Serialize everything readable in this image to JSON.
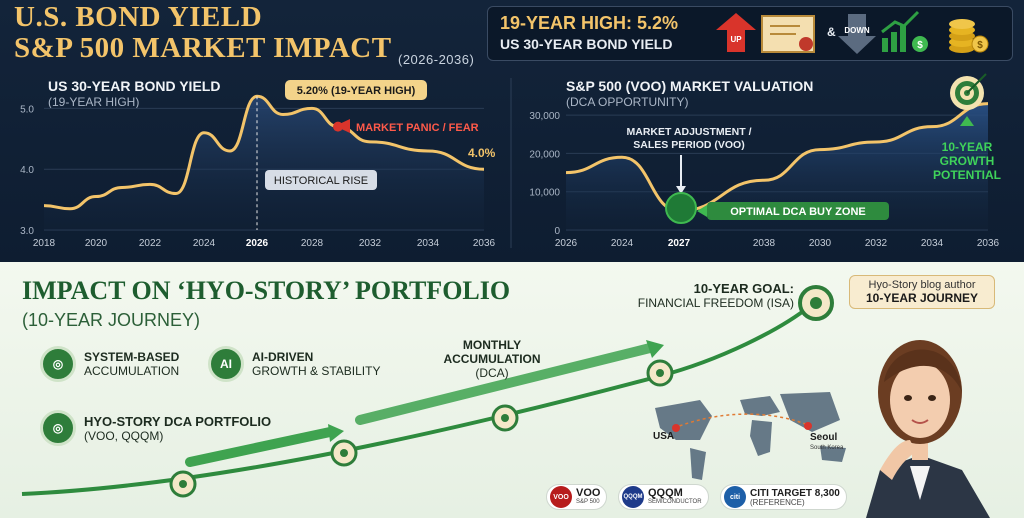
{
  "header": {
    "title_line1": "U.S. BOND YIELD",
    "title_line2": "S&P 500 MARKET IMPACT",
    "title_years": "(2026-2036)",
    "highlight_title": "19-YEAR HIGH: 5.2%",
    "highlight_sub": "US 30-YEAR BOND YIELD",
    "up_label": "UP",
    "down_label": "DOWN",
    "amp": "&"
  },
  "bond_panel": {
    "title": "US 30-YEAR BOND YIELD",
    "subtitle": "(19-YEAR HIGH)",
    "peak_label": "5.20% (19-YEAR HIGH)",
    "panic_label": "MARKET PANIC / FEAR",
    "rise_label": "HISTORICAL RISE",
    "end_label": "4.0%",
    "y_ticks": [
      "5.0",
      "4.0",
      "3.0"
    ],
    "x_ticks": [
      "2018",
      "2020",
      "2022",
      "2024",
      "2026",
      "2028",
      "2032",
      "2034",
      "2036"
    ]
  },
  "sp_panel": {
    "title": "S&P 500 (VOO) MARKET VALUATION",
    "subtitle": "(DCA OPPORTUNITY)",
    "adjust_label": "MARKET ADJUSTMENT / SALES PERIOD (VOO)",
    "zone_label": "OPTIMAL DCA BUY ZONE",
    "growth_label": "10-YEAR GROWTH POTENTIAL",
    "y_ticks": [
      "30,000",
      "20,000",
      "10,000",
      "0"
    ],
    "x_ticks": [
      "2026",
      "2024",
      "2027",
      "2038",
      "2030",
      "2032",
      "2034",
      "2036"
    ]
  },
  "chart_data": [
    {
      "type": "line",
      "title": "US 30-YEAR BOND YIELD",
      "subtitle": "(19-YEAR HIGH)",
      "x": [
        2018,
        2019,
        2020,
        2021,
        2022,
        2023,
        2024,
        2025,
        2026,
        2027,
        2028,
        2029,
        2032,
        2034,
        2036
      ],
      "values": [
        3.4,
        3.35,
        3.55,
        3.7,
        3.75,
        3.6,
        4.6,
        4.3,
        5.2,
        4.9,
        5.0,
        4.7,
        4.45,
        4.3,
        4.0
      ],
      "ylim": [
        3.0,
        5.5
      ],
      "annotations": [
        "5.20% (19-YEAR HIGH)",
        "MARKET PANIC / FEAR",
        "HISTORICAL RISE",
        "4.0%"
      ]
    },
    {
      "type": "area",
      "title": "S&P 500 (VOO) MARKET VALUATION",
      "subtitle": "(DCA OPPORTUNITY)",
      "x": [
        "2026",
        "2024",
        "2027",
        "2038",
        "2030",
        "2032",
        "2034",
        "2036"
      ],
      "values": [
        15000,
        19000,
        5000,
        13000,
        21000,
        23000,
        27000,
        33000
      ],
      "ylim": [
        0,
        35000
      ],
      "annotations": [
        "MARKET ADJUSTMENT / SALES PERIOD (VOO)",
        "OPTIMAL DCA BUY ZONE",
        "10-YEAR GROWTH POTENTIAL"
      ]
    }
  ],
  "portfolio": {
    "title": "IMPACT ON ‘HYO-STORY’ PORTFOLIO",
    "subtitle": "(10-YEAR JOURNEY)",
    "feature1_line1": "SYSTEM-BASED",
    "feature1_line2": "ACCUMULATION",
    "feature2_line1": "AI-DRIVEN",
    "feature2_line2": "GROWTH & STABILITY",
    "ai_icon": "AI",
    "dca_title": "HYO-STORY DCA PORTFOLIO",
    "dca_sub": "(VOO, QQQM)",
    "monthly_line1": "MONTHLY",
    "monthly_line2": "ACCUMULATION",
    "monthly_line3": "(DCA)",
    "goal_line1": "10-YEAR GOAL:",
    "goal_line2": "FINANCIAL FREEDOM (ISA)",
    "usa_label": "USA",
    "seoul_label": "Seoul",
    "seoul_sub": "South Korea",
    "badge_line1": "Hyo-Story blog author",
    "badge_line2": "10-YEAR JOURNEY"
  },
  "tickers": [
    {
      "logo": "VOO",
      "name": "VOO",
      "sub": "S&P 500",
      "color": "#b71c1c"
    },
    {
      "logo": "QQQM",
      "name": "QQQM",
      "sub": "SEMICONDUCTOR",
      "color": "#1e3a8a"
    },
    {
      "logo": "citi",
      "name": "CITI TARGET 8,300",
      "sub": "(REFERENCE)",
      "color": "#1d5fa8"
    }
  ],
  "colors": {
    "gold": "#f3c46a",
    "navy": "#13243a",
    "green": "#2e7d3a",
    "red": "#d9342b"
  }
}
